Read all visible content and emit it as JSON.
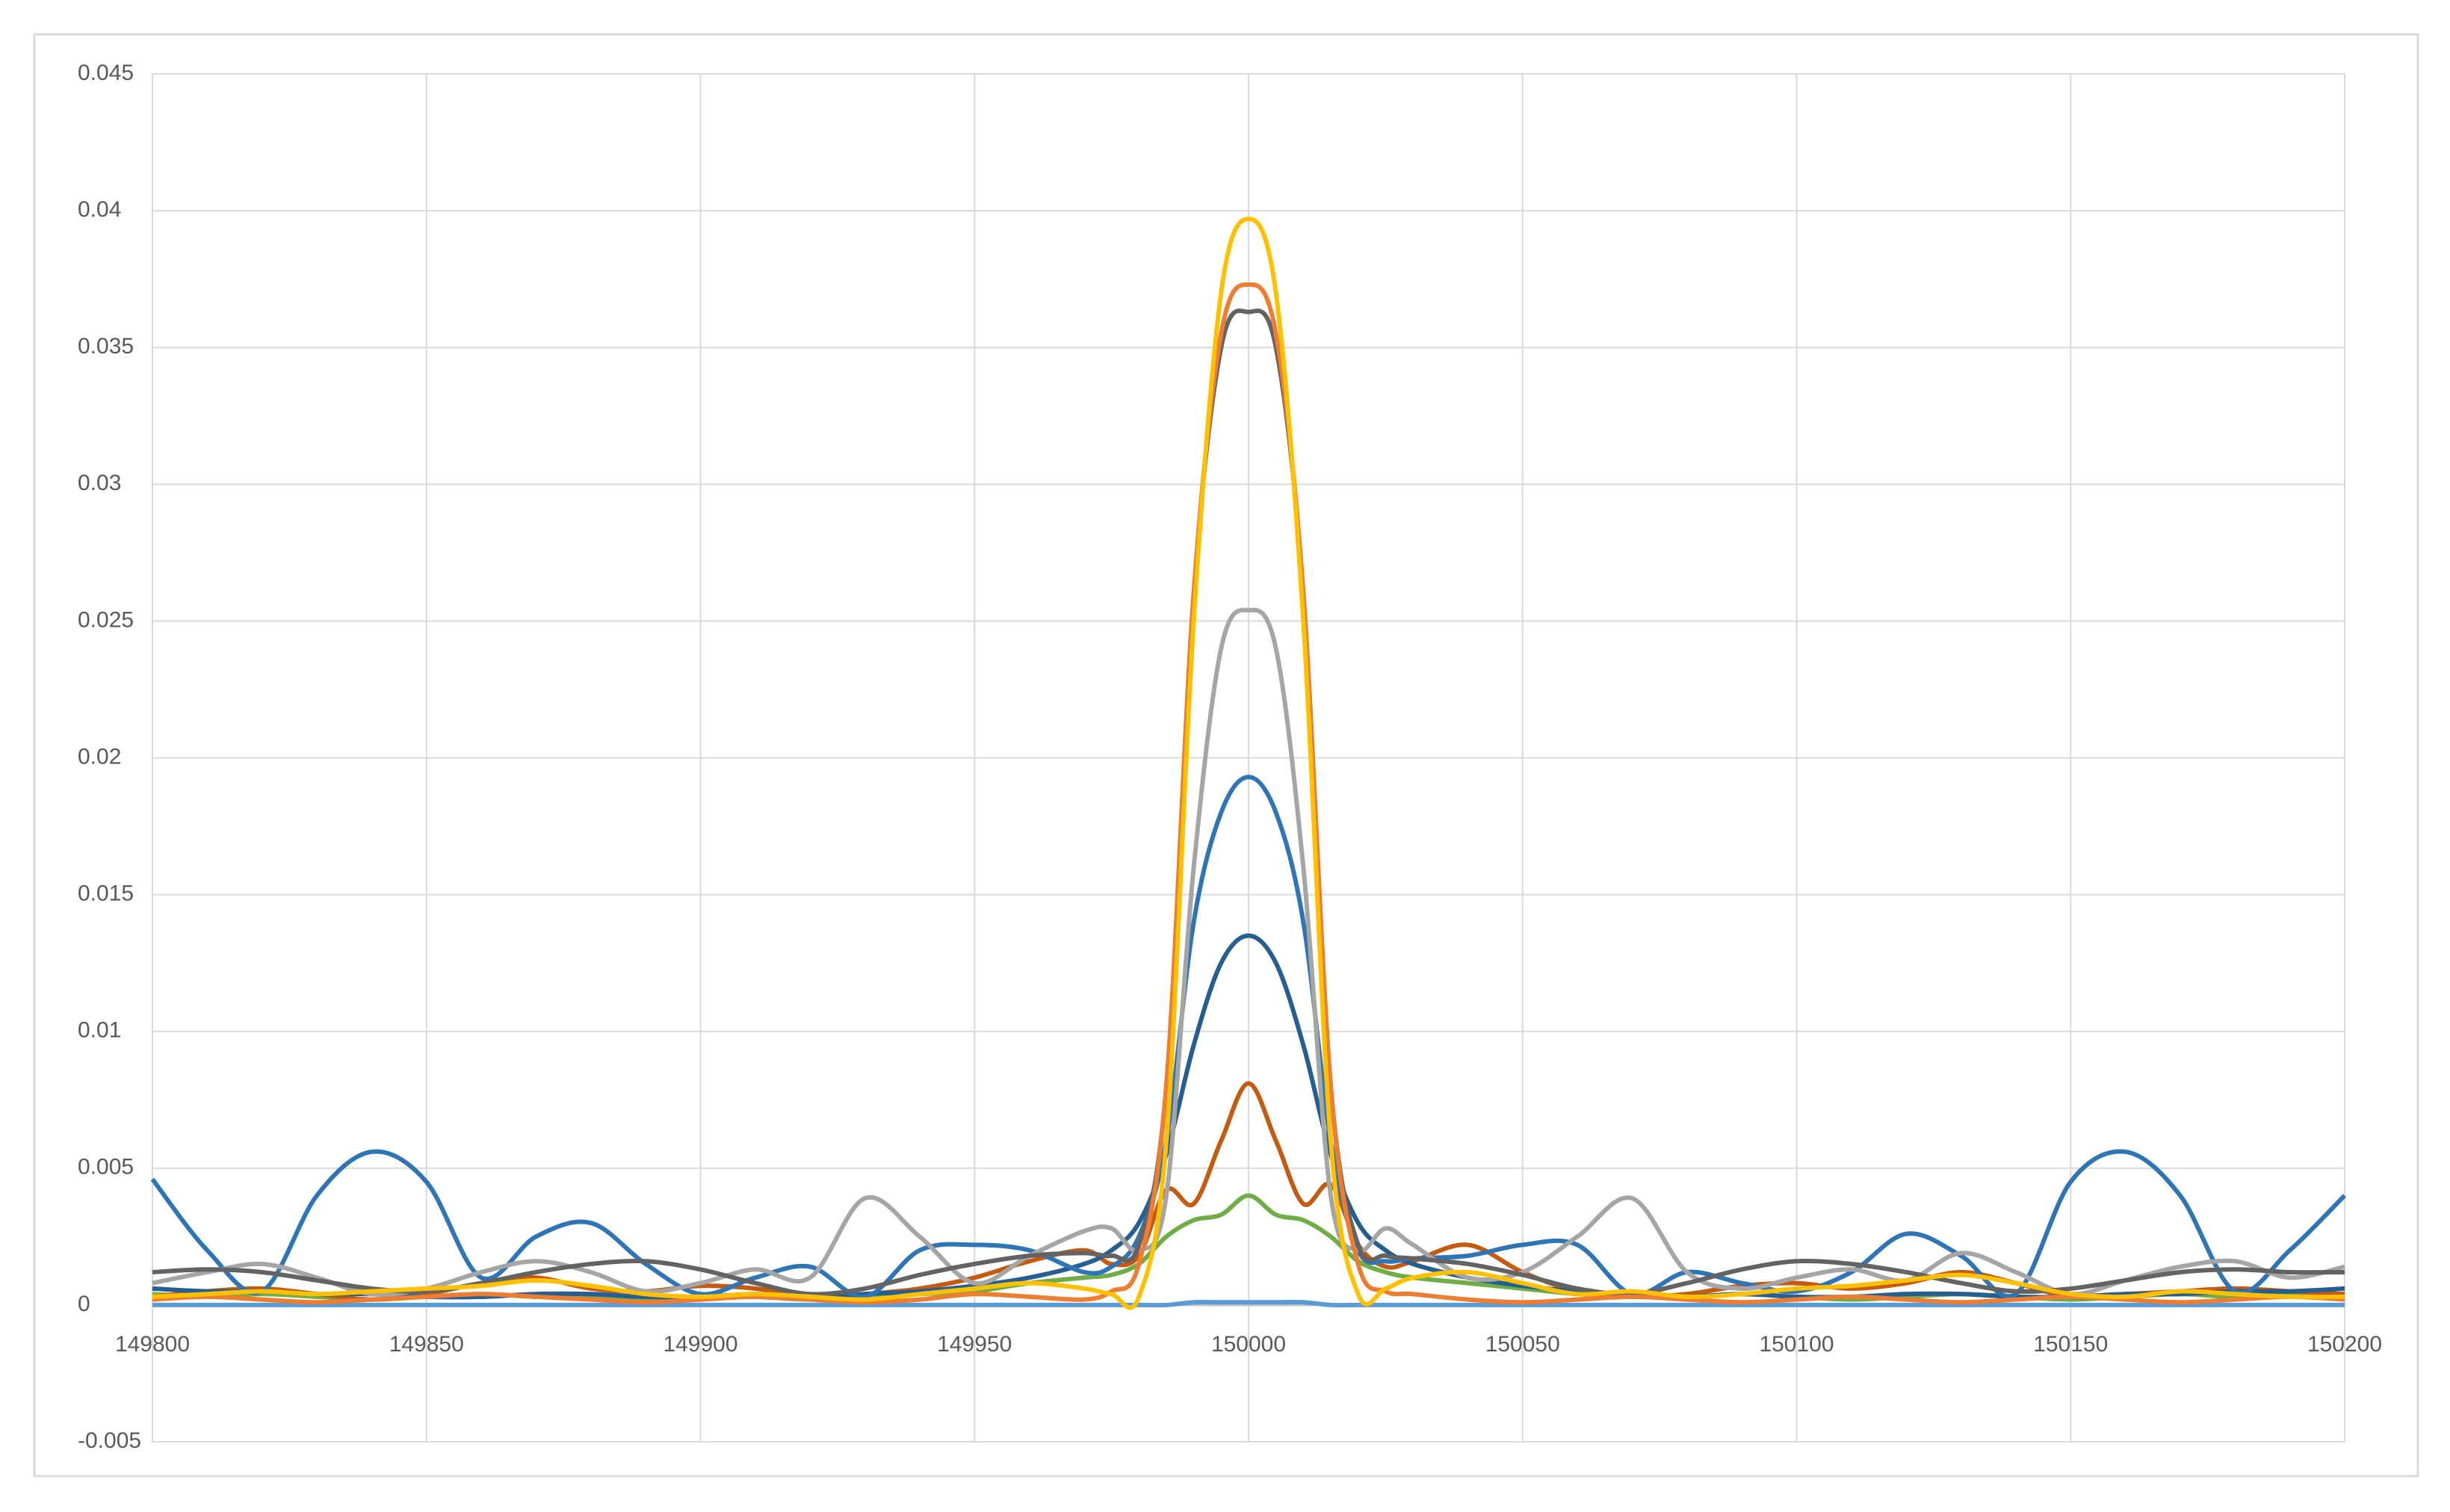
{
  "chart_data": {
    "type": "line",
    "x": [
      149800,
      149810,
      149820,
      149830,
      149840,
      149850,
      149860,
      149870,
      149880,
      149890,
      149900,
      149910,
      149920,
      149930,
      149940,
      149950,
      149960,
      149970,
      149975,
      149980,
      149985,
      149990,
      149995,
      150000,
      150005,
      150010,
      150015,
      150020,
      150025,
      150030,
      150040,
      150050,
      150060,
      150070,
      150080,
      150090,
      150100,
      150110,
      150120,
      150130,
      150140,
      150150,
      150160,
      150170,
      150180,
      150190,
      150200
    ],
    "xlim": [
      149800,
      150200
    ],
    "xticks": [
      149800,
      149850,
      149900,
      149950,
      150000,
      150050,
      150100,
      150150,
      150200
    ],
    "ylim": [
      -0.005,
      0.045
    ],
    "yticks": [
      -0.005,
      0,
      0.005,
      0.01,
      0.015,
      0.02,
      0.025,
      0.03,
      0.035,
      0.04,
      0.045
    ],
    "grid": true,
    "series": [
      {
        "color": "#5B9BD5",
        "values": [
          0,
          0,
          0,
          0,
          0,
          0,
          0,
          0,
          0,
          0,
          0,
          0,
          0,
          0,
          0,
          0,
          0,
          0,
          0,
          0,
          0,
          0.0001,
          0.0001,
          0.0001,
          0.0001,
          0.0001,
          0,
          0,
          0,
          0,
          0,
          0,
          0,
          0,
          0,
          0,
          0,
          0,
          0,
          0,
          0,
          0,
          0,
          0,
          0,
          0,
          0
        ]
      },
      {
        "color": "#70AD47",
        "values": [
          0.0004,
          0.0003,
          0.0004,
          0.0003,
          0.0002,
          0.0003,
          0.0004,
          0.0003,
          0.0003,
          0.0002,
          0.0003,
          0.0003,
          0.0002,
          0.0003,
          0.0004,
          0.0005,
          0.0008,
          0.001,
          0.0011,
          0.0015,
          0.0025,
          0.0031,
          0.0033,
          0.004,
          0.0033,
          0.0031,
          0.0025,
          0.0016,
          0.0012,
          0.001,
          0.0008,
          0.0006,
          0.0004,
          0.0003,
          0.0003,
          0.0004,
          0.0003,
          0.0002,
          0.0003,
          0.0004,
          0.0003,
          0.0002,
          0.0003,
          0.0004,
          0.0003,
          0.0004,
          0.0004
        ]
      },
      {
        "color": "#C55A11",
        "values": [
          0.0003,
          0.0005,
          0.0006,
          0.0004,
          0.0002,
          0.0004,
          0.0008,
          0.001,
          0.0006,
          0.0005,
          0.0007,
          0.0006,
          0.0003,
          0.0004,
          0.0006,
          0.001,
          0.0016,
          0.002,
          0.0015,
          0.0018,
          0.0042,
          0.0037,
          0.006,
          0.0081,
          0.006,
          0.0037,
          0.0044,
          0.0022,
          0.0014,
          0.0016,
          0.0022,
          0.0012,
          0.0005,
          0.0003,
          0.0004,
          0.0007,
          0.0008,
          0.0006,
          0.0008,
          0.0012,
          0.0008,
          0.0003,
          0.0004,
          0.0005,
          0.0006,
          0.0005,
          0.0004
        ]
      },
      {
        "color": "#255E91",
        "values": [
          0.0006,
          0.0005,
          0.0005,
          0.0004,
          0.0004,
          0.0003,
          0.0003,
          0.0004,
          0.0004,
          0.0003,
          0.0003,
          0.0004,
          0.0003,
          0.0004,
          0.0005,
          0.0007,
          0.001,
          0.0015,
          0.002,
          0.003,
          0.0055,
          0.0095,
          0.0125,
          0.0135,
          0.0125,
          0.0095,
          0.0055,
          0.003,
          0.002,
          0.0015,
          0.001,
          0.0007,
          0.0005,
          0.0004,
          0.0003,
          0.0004,
          0.0003,
          0.0003,
          0.0004,
          0.0004,
          0.0003,
          0.0003,
          0.0004,
          0.0004,
          0.0005,
          0.0005,
          0.0006
        ]
      },
      {
        "color": "#2E75B6",
        "values": [
          0.0046,
          0.002,
          0.0005,
          0.004,
          0.0056,
          0.0045,
          0.001,
          0.0025,
          0.003,
          0.0015,
          0.0004,
          0.001,
          0.0014,
          0.0003,
          0.002,
          0.0022,
          0.002,
          0.0012,
          0.0014,
          0.0025,
          0.006,
          0.014,
          0.018,
          0.0193,
          0.018,
          0.014,
          0.006,
          0.002,
          0.0016,
          0.0017,
          0.0018,
          0.0022,
          0.0022,
          0.0004,
          0.0012,
          0.0008,
          0.0005,
          0.0012,
          0.0026,
          0.0018,
          0.0004,
          0.0045,
          0.0056,
          0.004,
          0.0005,
          0.002,
          0.004
        ]
      },
      {
        "color": "#A5A5A5",
        "values": [
          0.0008,
          0.0012,
          0.0015,
          0.001,
          0.0004,
          0.0006,
          0.0012,
          0.0016,
          0.0012,
          0.0005,
          0.0008,
          0.0013,
          0.001,
          0.0039,
          0.0025,
          0.0008,
          0.0018,
          0.0027,
          0.0028,
          0.002,
          0.004,
          0.016,
          0.024,
          0.0254,
          0.024,
          0.016,
          0.004,
          0.002,
          0.0028,
          0.0022,
          0.001,
          0.0012,
          0.0025,
          0.0039,
          0.0012,
          0.0006,
          0.001,
          0.0013,
          0.0009,
          0.0019,
          0.0012,
          0.0004,
          0.0009,
          0.0014,
          0.0016,
          0.001,
          0.0014
        ]
      },
      {
        "color": "#636363",
        "values": [
          0.0012,
          0.0013,
          0.0012,
          0.0009,
          0.0006,
          0.0005,
          0.0008,
          0.0012,
          0.0015,
          0.0016,
          0.0013,
          0.0008,
          0.0004,
          0.0006,
          0.0011,
          0.0015,
          0.0018,
          0.0019,
          0.0018,
          0.0022,
          0.008,
          0.026,
          0.035,
          0.0363,
          0.035,
          0.026,
          0.008,
          0.0022,
          0.0018,
          0.0017,
          0.0015,
          0.0011,
          0.0006,
          0.0004,
          0.0008,
          0.0013,
          0.0016,
          0.0015,
          0.0012,
          0.0008,
          0.0005,
          0.0006,
          0.0009,
          0.0012,
          0.0013,
          0.0012,
          0.0012
        ]
      },
      {
        "color": "#ED7D31",
        "values": [
          0.0002,
          0.0003,
          0.0002,
          0.0001,
          0.0002,
          0.0003,
          0.0004,
          0.0003,
          0.0002,
          0.0001,
          0.0002,
          0.0003,
          0.0002,
          0.0001,
          0.0002,
          0.0004,
          0.0003,
          0.0002,
          0.0005,
          0.0015,
          0.008,
          0.026,
          0.0355,
          0.0373,
          0.0355,
          0.026,
          0.008,
          0.0015,
          0.0005,
          0.0004,
          0.0002,
          0.0001,
          0.0002,
          0.0003,
          0.0002,
          0.0001,
          0.0002,
          0.0003,
          0.0002,
          0.0001,
          0.0002,
          0.0003,
          0.0002,
          0.0001,
          0.0002,
          0.0003,
          0.0002
        ]
      },
      {
        "color": "#FFC000",
        "values": [
          0.0003,
          0.0004,
          0.0005,
          0.0004,
          0.0005,
          0.0006,
          0.0007,
          0.0009,
          0.0007,
          0.0004,
          0.0003,
          0.0004,
          0.0003,
          0.0002,
          0.0004,
          0.0006,
          0.0008,
          0.0006,
          0.0004,
          0.0003,
          0.006,
          0.025,
          0.037,
          0.0397,
          0.037,
          0.025,
          0.006,
          0.0004,
          0.0006,
          0.001,
          0.0012,
          0.0008,
          0.0004,
          0.0005,
          0.0003,
          0.0004,
          0.0006,
          0.0007,
          0.0009,
          0.0011,
          0.0008,
          0.0004,
          0.0003,
          0.0005,
          0.0004,
          0.0003,
          0.0003
        ]
      }
    ]
  }
}
